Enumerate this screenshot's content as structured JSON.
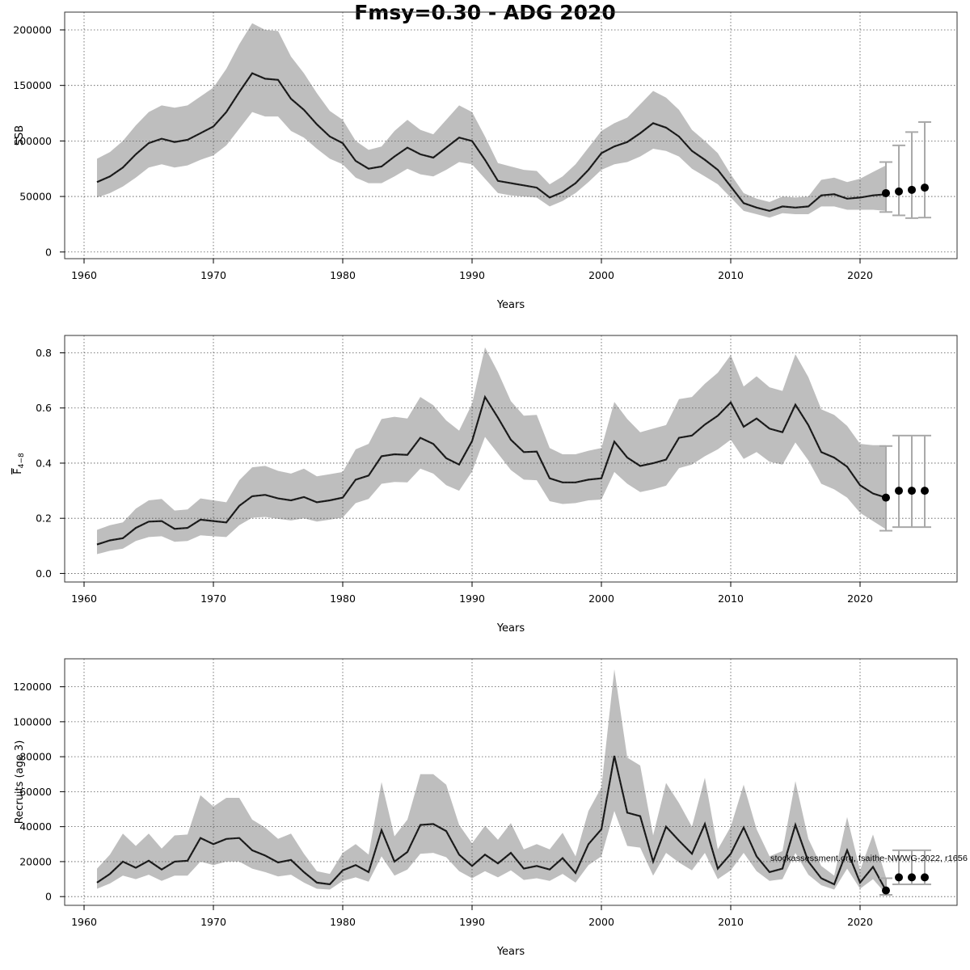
{
  "title": "Fmsy=0.30 - ADG 2020",
  "colors": {
    "band": "#bebebe",
    "line": "#222222",
    "errorbar": "#a9a9a9",
    "point": "#000000",
    "grid": "#555555"
  },
  "chart_data": [
    {
      "type": "line",
      "id": "ssb",
      "ylabel": "SSB",
      "xlabel": "Years",
      "xlim": [
        1958.5,
        2027.5
      ],
      "ylim": [
        -6000,
        216000
      ],
      "x_ticks": [
        "1960",
        "1970",
        "1980",
        "1990",
        "2000",
        "2010",
        "2020"
      ],
      "y_ticks": [
        "0",
        "50000",
        "100000",
        "150000",
        "200000"
      ],
      "grid": true,
      "x": [
        1961,
        1962,
        1963,
        1964,
        1965,
        1966,
        1967,
        1968,
        1969,
        1970,
        1971,
        1972,
        1973,
        1974,
        1975,
        1976,
        1977,
        1978,
        1979,
        1980,
        1981,
        1982,
        1983,
        1984,
        1985,
        1986,
        1987,
        1988,
        1989,
        1990,
        1991,
        1992,
        1993,
        1994,
        1995,
        1996,
        1997,
        1998,
        1999,
        2000,
        2001,
        2002,
        2003,
        2004,
        2005,
        2006,
        2007,
        2008,
        2009,
        2010,
        2011,
        2012,
        2013,
        2014,
        2015,
        2016,
        2017,
        2018,
        2019,
        2020,
        2021,
        2022
      ],
      "estimate": [
        63000,
        68000,
        76000,
        88000,
        98000,
        102000,
        99000,
        101000,
        107000,
        113000,
        126000,
        144000,
        161000,
        156000,
        155000,
        138000,
        128000,
        115000,
        104000,
        98000,
        82000,
        75000,
        77000,
        86000,
        94000,
        88000,
        85000,
        94000,
        103000,
        100000,
        83000,
        64000,
        62000,
        60000,
        58000,
        49000,
        54000,
        62000,
        74000,
        89000,
        95000,
        99000,
        107000,
        116000,
        112000,
        104000,
        91000,
        83000,
        74000,
        59000,
        44000,
        40000,
        37000,
        41000,
        40000,
        41000,
        51000,
        52000,
        48000,
        49000,
        51000,
        52000
      ],
      "lower": [
        49000,
        53000,
        59000,
        67000,
        76000,
        79000,
        76000,
        78000,
        83000,
        87000,
        96000,
        111000,
        126000,
        122000,
        122000,
        109000,
        103000,
        93000,
        84000,
        79000,
        67000,
        62000,
        62000,
        68000,
        75000,
        70000,
        68000,
        74000,
        81000,
        79000,
        66000,
        53000,
        51000,
        50000,
        49000,
        41000,
        46000,
        53000,
        63000,
        74000,
        79000,
        81000,
        86000,
        93000,
        91000,
        86000,
        75000,
        68000,
        61000,
        49000,
        37000,
        34000,
        31000,
        35000,
        34000,
        34000,
        41000,
        41000,
        38000,
        38000,
        38000,
        37000
      ],
      "upper": [
        84000,
        90000,
        100000,
        114000,
        126000,
        132000,
        130000,
        132000,
        140000,
        148000,
        165000,
        187000,
        206000,
        200000,
        199000,
        176000,
        161000,
        143000,
        127000,
        119000,
        100000,
        92000,
        95000,
        109000,
        119000,
        110000,
        106000,
        119000,
        132000,
        126000,
        104000,
        80000,
        77000,
        74000,
        73000,
        61000,
        68000,
        79000,
        94000,
        109000,
        116000,
        121000,
        133000,
        145000,
        139000,
        128000,
        110000,
        100000,
        89000,
        70000,
        53000,
        48000,
        45000,
        50000,
        49000,
        50000,
        65000,
        67000,
        63000,
        66000,
        72000,
        78000
      ],
      "projection": {
        "x": [
          2022,
          2023,
          2024,
          2025
        ],
        "values": [
          53000,
          54500,
          56000,
          58000
        ],
        "lower": [
          36000,
          33000,
          30500,
          31000
        ],
        "upper": [
          81000,
          96000,
          108000,
          117000
        ]
      }
    },
    {
      "type": "line",
      "id": "fbar",
      "ylabel_main": "F",
      "ylabel_sub": "4−8",
      "xlabel": "Years",
      "xlim": [
        1958.5,
        2027.5
      ],
      "ylim": [
        -0.031,
        0.863
      ],
      "x_ticks": [
        "1960",
        "1970",
        "1980",
        "1990",
        "2000",
        "2010",
        "2020"
      ],
      "y_ticks": [
        "0.0",
        "0.2",
        "0.4",
        "0.6",
        "0.8"
      ],
      "grid": true,
      "x": [
        1961,
        1962,
        1963,
        1964,
        1965,
        1966,
        1967,
        1968,
        1969,
        1970,
        1971,
        1972,
        1973,
        1974,
        1975,
        1976,
        1977,
        1978,
        1979,
        1980,
        1981,
        1982,
        1983,
        1984,
        1985,
        1986,
        1987,
        1988,
        1989,
        1990,
        1991,
        1992,
        1993,
        1994,
        1995,
        1996,
        1997,
        1998,
        1999,
        2000,
        2001,
        2002,
        2003,
        2004,
        2005,
        2006,
        2007,
        2008,
        2009,
        2010,
        2011,
        2012,
        2013,
        2014,
        2015,
        2016,
        2017,
        2018,
        2019,
        2020,
        2021,
        2022
      ],
      "estimate": [
        0.105,
        0.12,
        0.128,
        0.165,
        0.188,
        0.19,
        0.162,
        0.165,
        0.195,
        0.19,
        0.185,
        0.245,
        0.28,
        0.285,
        0.272,
        0.265,
        0.277,
        0.258,
        0.265,
        0.275,
        0.34,
        0.355,
        0.425,
        0.432,
        0.43,
        0.492,
        0.47,
        0.418,
        0.395,
        0.48,
        0.64,
        0.565,
        0.485,
        0.44,
        0.442,
        0.345,
        0.33,
        0.33,
        0.34,
        0.345,
        0.478,
        0.42,
        0.39,
        0.4,
        0.413,
        0.492,
        0.5,
        0.54,
        0.572,
        0.62,
        0.532,
        0.562,
        0.525,
        0.512,
        0.612,
        0.538,
        0.44,
        0.42,
        0.387,
        0.32,
        0.29,
        0.275
      ],
      "lower": [
        0.07,
        0.082,
        0.09,
        0.118,
        0.132,
        0.135,
        0.115,
        0.118,
        0.138,
        0.135,
        0.132,
        0.175,
        0.202,
        0.205,
        0.198,
        0.192,
        0.2,
        0.188,
        0.195,
        0.203,
        0.255,
        0.27,
        0.325,
        0.332,
        0.33,
        0.38,
        0.362,
        0.32,
        0.3,
        0.37,
        0.495,
        0.435,
        0.375,
        0.34,
        0.338,
        0.262,
        0.252,
        0.255,
        0.265,
        0.268,
        0.368,
        0.325,
        0.295,
        0.305,
        0.318,
        0.382,
        0.395,
        0.425,
        0.45,
        0.485,
        0.415,
        0.44,
        0.405,
        0.395,
        0.475,
        0.41,
        0.325,
        0.305,
        0.275,
        0.22,
        0.19,
        0.16
      ],
      "upper": [
        0.158,
        0.175,
        0.185,
        0.235,
        0.265,
        0.27,
        0.228,
        0.232,
        0.272,
        0.265,
        0.258,
        0.338,
        0.385,
        0.39,
        0.372,
        0.362,
        0.38,
        0.352,
        0.36,
        0.368,
        0.45,
        0.47,
        0.56,
        0.568,
        0.562,
        0.64,
        0.61,
        0.555,
        0.518,
        0.615,
        0.82,
        0.73,
        0.625,
        0.572,
        0.575,
        0.455,
        0.432,
        0.432,
        0.445,
        0.455,
        0.622,
        0.56,
        0.512,
        0.525,
        0.538,
        0.632,
        0.64,
        0.688,
        0.728,
        0.792,
        0.678,
        0.715,
        0.675,
        0.662,
        0.795,
        0.712,
        0.595,
        0.575,
        0.535,
        0.47,
        0.465,
        0.465
      ],
      "projection": {
        "x": [
          2022,
          2023,
          2024,
          2025
        ],
        "values": [
          0.275,
          0.3,
          0.3,
          0.3
        ],
        "lower": [
          0.155,
          0.168,
          0.168,
          0.168
        ],
        "upper": [
          0.462,
          0.5,
          0.5,
          0.5
        ]
      }
    },
    {
      "type": "line",
      "id": "recruits",
      "ylabel": "Recruits (age 3)",
      "xlabel": "Years",
      "xlim": [
        1958.5,
        2027.5
      ],
      "ylim": [
        -5000,
        136000
      ],
      "x_ticks": [
        "1960",
        "1970",
        "1980",
        "1990",
        "2000",
        "2010",
        "2020"
      ],
      "y_ticks": [
        "0",
        "20000",
        "40000",
        "60000",
        "80000",
        "100000",
        "120000"
      ],
      "grid": true,
      "annotation": "stockassessment.org, fsaithe-NWWG-2022, r1656",
      "x": [
        1961,
        1962,
        1963,
        1964,
        1965,
        1966,
        1967,
        1968,
        1969,
        1970,
        1971,
        1972,
        1973,
        1974,
        1975,
        1976,
        1977,
        1978,
        1979,
        1980,
        1981,
        1982,
        1983,
        1984,
        1985,
        1986,
        1987,
        1988,
        1989,
        1990,
        1991,
        1992,
        1993,
        1994,
        1995,
        1996,
        1997,
        1998,
        1999,
        2000,
        2001,
        2002,
        2003,
        2004,
        2005,
        2006,
        2007,
        2008,
        2009,
        2010,
        2011,
        2012,
        2013,
        2014,
        2015,
        2016,
        2017,
        2018,
        2019,
        2020,
        2021,
        2022
      ],
      "estimate": [
        8000,
        13000,
        20000,
        16500,
        20500,
        15500,
        20000,
        20500,
        33500,
        30000,
        33000,
        33500,
        26500,
        23500,
        19500,
        21000,
        14000,
        8000,
        7000,
        15000,
        18000,
        14000,
        38000,
        20000,
        25500,
        41000,
        41500,
        37500,
        24000,
        17500,
        24000,
        19000,
        25000,
        16000,
        17500,
        15500,
        22000,
        13500,
        30000,
        38500,
        80500,
        48000,
        46000,
        20000,
        40000,
        32000,
        24500,
        41500,
        16000,
        24500,
        39500,
        23000,
        14000,
        16000,
        41000,
        20000,
        10500,
        7000,
        26500,
        8000,
        17000,
        3500
      ],
      "lower": [
        4500,
        7500,
        12000,
        10000,
        12500,
        9000,
        12000,
        12000,
        20000,
        18000,
        20000,
        20000,
        16000,
        14000,
        11500,
        12500,
        8000,
        4500,
        4000,
        9000,
        11000,
        8500,
        23000,
        12000,
        15500,
        24500,
        25000,
        22500,
        14500,
        10500,
        14500,
        11000,
        15000,
        9500,
        10500,
        9000,
        13000,
        8000,
        18000,
        23000,
        49000,
        29000,
        28000,
        12000,
        25000,
        19500,
        15000,
        25000,
        10000,
        15000,
        25000,
        14500,
        9000,
        10000,
        25000,
        12500,
        6500,
        4000,
        16000,
        4500,
        10000,
        1500
      ],
      "upper": [
        16000,
        24000,
        36000,
        29000,
        36000,
        27500,
        35000,
        35500,
        58000,
        51500,
        56500,
        56500,
        44000,
        39500,
        33000,
        36000,
        24500,
        14500,
        13000,
        25000,
        30000,
        24000,
        65500,
        34500,
        44000,
        70000,
        70000,
        64000,
        41000,
        30500,
        40500,
        32500,
        42000,
        27000,
        30000,
        27000,
        36500,
        23000,
        49000,
        62500,
        130000,
        79500,
        75000,
        35000,
        65000,
        53500,
        40000,
        68000,
        27000,
        40000,
        64000,
        38500,
        23000,
        26000,
        66000,
        33000,
        17500,
        12000,
        45500,
        15000,
        35500,
        11000
      ],
      "projection": {
        "x": [
          2022,
          2023,
          2024,
          2025
        ],
        "values": [
          3500,
          11000,
          11000,
          11000
        ],
        "lower": [
          1000,
          7000,
          7000,
          7000
        ],
        "upper": [
          10500,
          26500,
          26500,
          26500
        ]
      }
    }
  ]
}
